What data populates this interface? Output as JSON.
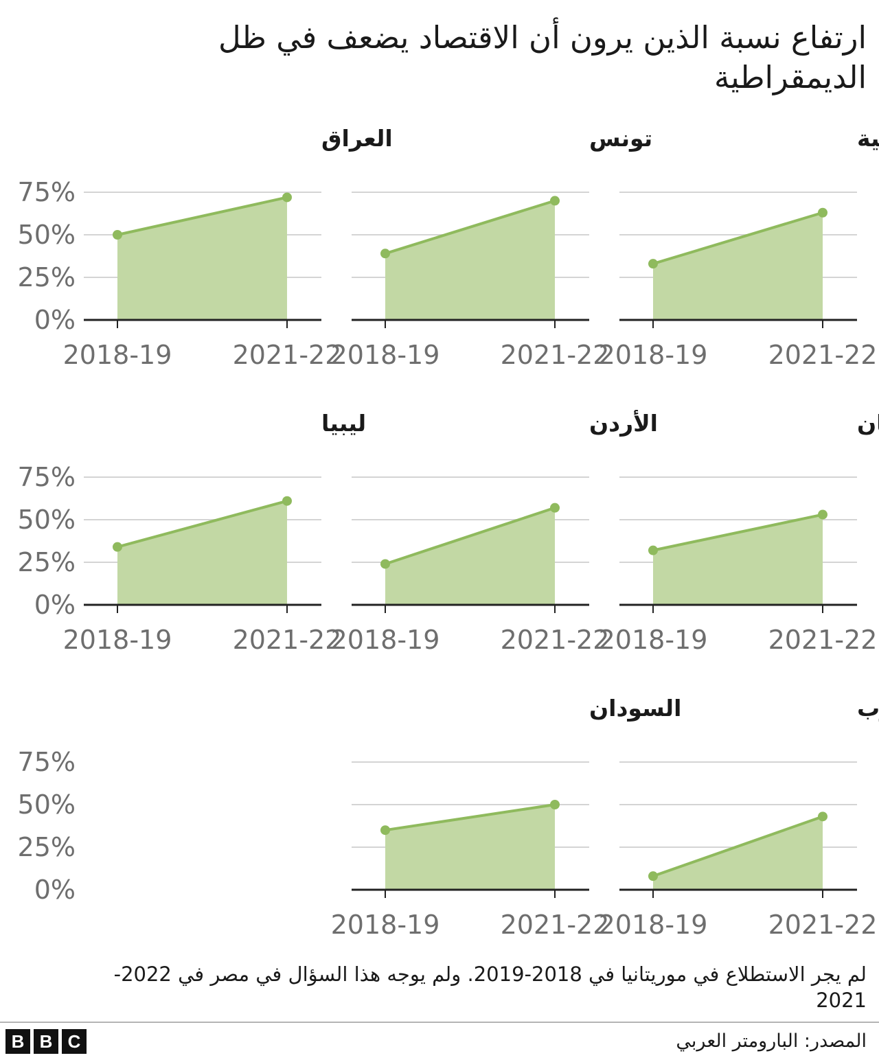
{
  "title": "ارتفاع نسبة الذين يرون أن الاقتصاد يضعف في ظل الديمقراطية",
  "note": "لم يجر الاستطلاع في موريتانيا في 2018-2019. ولم يوجه هذا السؤال في مصر في 2022-2021",
  "source": "المصدر: البارومتر العربي",
  "logo": {
    "letters": [
      "B",
      "B",
      "C"
    ]
  },
  "colors": {
    "line": "#8fba5d",
    "area": "#c2d8a4",
    "grid": "#d4d4d4",
    "axis": "#222222",
    "tick_text": "#6e6e6e"
  },
  "chart_data": [
    {
      "type": "area",
      "title": "الأراضي الفلسطينية",
      "x": [
        "2018-19",
        "2021-22"
      ],
      "values": [
        33,
        63
      ],
      "ylim": [
        0,
        75
      ],
      "yticks": [
        "0%",
        "25%",
        "50%",
        "75%"
      ],
      "grid": true
    },
    {
      "type": "area",
      "title": "تونس",
      "x": [
        "2018-19",
        "2021-22"
      ],
      "values": [
        39,
        70
      ],
      "ylim": [
        0,
        75
      ],
      "yticks": [
        "0%",
        "25%",
        "50%",
        "75%"
      ],
      "grid": true
    },
    {
      "type": "area",
      "title": "العراق",
      "x": [
        "2018-19",
        "2021-22"
      ],
      "values": [
        50,
        72
      ],
      "ylim": [
        0,
        75
      ],
      "yticks": [
        "0%",
        "25%",
        "50%",
        "75%"
      ],
      "grid": true
    },
    {
      "type": "area",
      "title": "لبنان",
      "x": [
        "2018-19",
        "2021-22"
      ],
      "values": [
        32,
        53
      ],
      "ylim": [
        0,
        75
      ],
      "yticks": [
        "0%",
        "25%",
        "50%",
        "75%"
      ],
      "grid": true
    },
    {
      "type": "area",
      "title": "الأردن",
      "x": [
        "2018-19",
        "2021-22"
      ],
      "values": [
        24,
        57
      ],
      "ylim": [
        0,
        75
      ],
      "yticks": [
        "0%",
        "25%",
        "50%",
        "75%"
      ],
      "grid": true
    },
    {
      "type": "area",
      "title": "ليبيا",
      "x": [
        "2018-19",
        "2021-22"
      ],
      "values": [
        34,
        61
      ],
      "ylim": [
        0,
        75
      ],
      "yticks": [
        "0%",
        "25%",
        "50%",
        "75%"
      ],
      "grid": true
    },
    {
      "type": "area",
      "title": "المغرب",
      "x": [
        "2018-19",
        "2021-22"
      ],
      "values": [
        8,
        43
      ],
      "ylim": [
        0,
        75
      ],
      "yticks": [
        "0%",
        "25%",
        "50%",
        "75%"
      ],
      "grid": true
    },
    {
      "type": "area",
      "title": "السودان",
      "x": [
        "2018-19",
        "2021-22"
      ],
      "values": [
        35,
        50
      ],
      "ylim": [
        0,
        75
      ],
      "yticks": [
        "0%",
        "25%",
        "50%",
        "75%"
      ],
      "grid": true
    }
  ]
}
